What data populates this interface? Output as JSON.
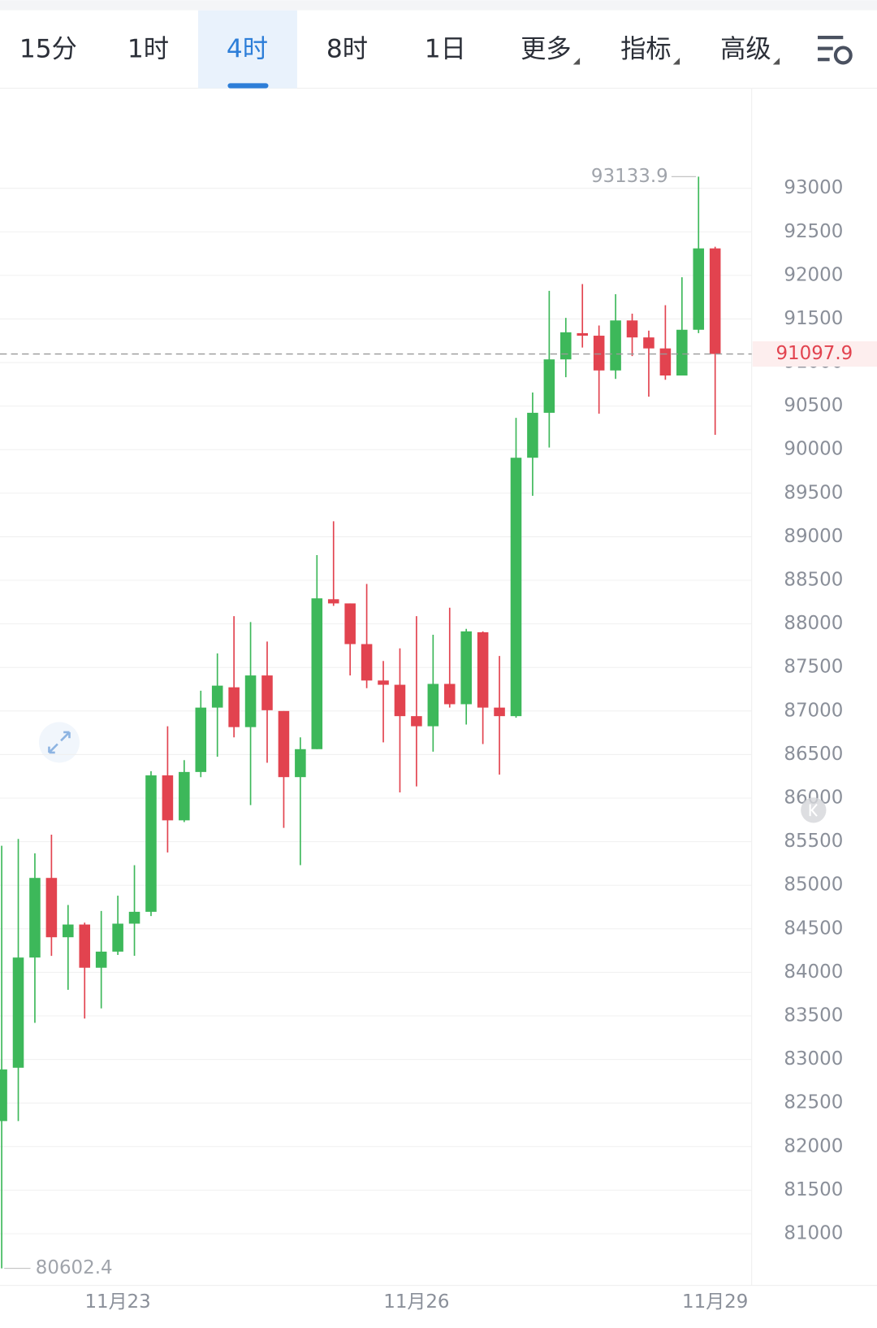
{
  "tabs": [
    "15分",
    "1时",
    "4时",
    "8时",
    "1日",
    "更多",
    "指标",
    "高级"
  ],
  "active_tab": 2,
  "chart_data": {
    "type": "candlestick",
    "up_color": "#3db85a",
    "down_color": "#e2434f",
    "grid": true,
    "ylim": [
      80406,
      94138
    ],
    "yticks": [
      81000,
      81500,
      82000,
      82500,
      83000,
      83500,
      84000,
      84500,
      85000,
      85500,
      86000,
      86500,
      87000,
      87500,
      88000,
      88500,
      89000,
      89500,
      90000,
      90500,
      91000,
      91500,
      92000,
      92500,
      93000
    ],
    "categories": [
      null,
      null,
      null,
      null,
      null,
      null,
      null,
      "11月23",
      null,
      null,
      null,
      null,
      null,
      null,
      null,
      null,
      null,
      null,
      null,
      null,
      null,
      null,
      null,
      null,
      null,
      "11月26",
      null,
      null,
      null,
      null,
      null,
      null,
      null,
      null,
      null,
      null,
      null,
      null,
      null,
      null,
      null,
      null,
      null,
      "11月29"
    ],
    "open": [
      82293,
      82905,
      84170,
      85084,
      84403,
      84549,
      84053,
      84238,
      84559,
      84695,
      86261,
      85745,
      86300,
      87039,
      87272,
      86815,
      87408,
      87000,
      86241,
      86562,
      88283,
      88235,
      87768,
      87350,
      87301,
      86941,
      86825,
      87311,
      87078,
      87904,
      87039,
      86941,
      89907,
      90423,
      91036,
      91337,
      91308,
      90909,
      91483,
      91288,
      91162,
      90851,
      91376,
      92310
    ],
    "high": [
      85453,
      85531,
      85366,
      85580,
      84773,
      84570,
      84705,
      84880,
      85230,
      86309,
      86825,
      86436,
      87233,
      87661,
      88089,
      88021,
      87797,
      87000,
      86698,
      88789,
      89178,
      88235,
      88458,
      87574,
      87719,
      88089,
      87875,
      88186,
      87943,
      87914,
      87632,
      90365,
      90656,
      91823,
      91512,
      91901,
      91425,
      91784,
      91561,
      91366,
      91658,
      91979,
      93133.9,
      92329
    ],
    "low": [
      80602.4,
      82293,
      83421,
      84189,
      83800,
      83470,
      83586,
      84200,
      84190,
      84646,
      85376,
      85725,
      86240,
      86475,
      86698,
      85920,
      86406,
      85658,
      85230,
      86562,
      88206,
      87408,
      87262,
      86640,
      86066,
      86134,
      86533,
      87039,
      86844,
      86620,
      86270,
      86922,
      89470,
      90024,
      90831,
      91172,
      90413,
      90812,
      91074,
      90608,
      90802,
      90851,
      91337,
      90170
    ],
    "close": [
      82886,
      84170,
      85084,
      84403,
      84549,
      84053,
      84238,
      84559,
      84695,
      86261,
      85745,
      86300,
      87039,
      87291,
      86815,
      87408,
      87009,
      86241,
      86562,
      88293,
      88235,
      87768,
      87350,
      87301,
      86941,
      86825,
      87311,
      87078,
      87914,
      87039,
      86941,
      89907,
      90423,
      91036,
      91347,
      91308,
      90909,
      91483,
      91288,
      91162,
      90851,
      91376,
      92310,
      91097.9
    ],
    "last_price": 91097.9
  }
}
